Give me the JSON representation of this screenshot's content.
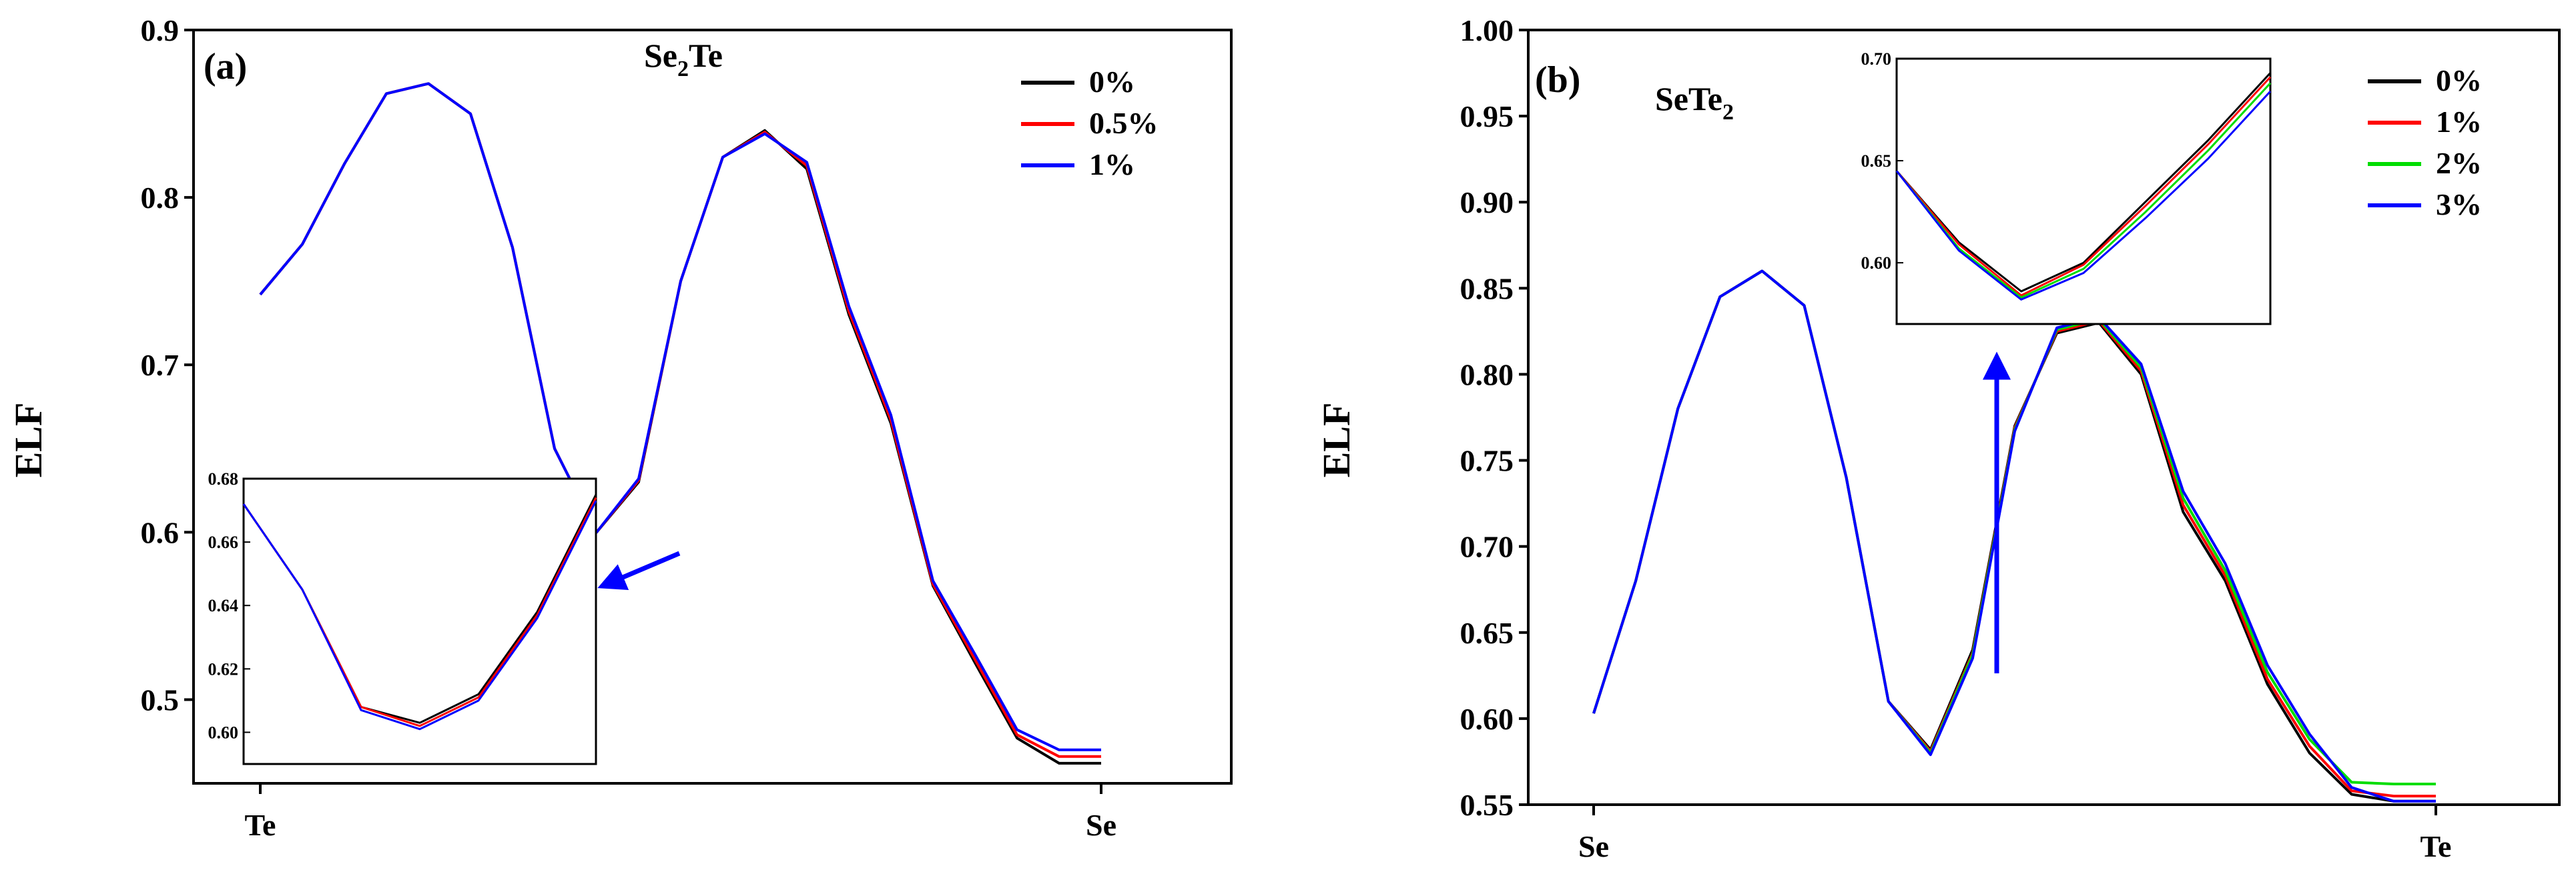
{
  "figure": {
    "type": "line",
    "panels": 2
  },
  "chart_data": [
    {
      "type": "line",
      "panel_label": "(a)",
      "title": {
        "main": "Se",
        "sub": "2",
        "tail": "Te"
      },
      "xlabel": "",
      "ylabel": "ELF",
      "xlim": [
        0,
        20
      ],
      "ylim": [
        0.45,
        0.9
      ],
      "y_ticks": [
        "0.5",
        "0.6",
        "0.7",
        "0.8",
        "0.9"
      ],
      "x_ticks": [
        {
          "x": 0,
          "label": "Te"
        },
        {
          "x": 20,
          "label": "Se"
        }
      ],
      "legend": [
        "0%",
        "0.5%",
        "1%"
      ],
      "series": [
        {
          "name": "0%",
          "color": "#000000",
          "x": [
            0,
            1,
            2,
            3,
            4,
            5,
            6,
            7,
            8,
            9,
            10,
            11,
            12,
            13,
            14,
            15,
            16,
            17,
            18,
            19,
            20
          ],
          "y": [
            0.742,
            0.772,
            0.82,
            0.862,
            0.868,
            0.85,
            0.77,
            0.65,
            0.6,
            0.63,
            0.75,
            0.824,
            0.84,
            0.817,
            0.73,
            0.665,
            0.568,
            0.522,
            0.477,
            0.462,
            0.462
          ]
        },
        {
          "name": "0.5%",
          "color": "#ff0000",
          "x": [
            0,
            1,
            2,
            3,
            4,
            5,
            6,
            7,
            8,
            9,
            10,
            11,
            12,
            13,
            14,
            15,
            16,
            17,
            18,
            19,
            20
          ],
          "y": [
            0.742,
            0.772,
            0.82,
            0.862,
            0.868,
            0.85,
            0.77,
            0.65,
            0.6,
            0.631,
            0.75,
            0.824,
            0.839,
            0.819,
            0.732,
            0.667,
            0.569,
            0.524,
            0.479,
            0.466,
            0.466
          ]
        },
        {
          "name": "1%",
          "color": "#0000ff",
          "x": [
            0,
            1,
            2,
            3,
            4,
            5,
            6,
            7,
            8,
            9,
            10,
            11,
            12,
            13,
            14,
            15,
            16,
            17,
            18,
            19,
            20
          ],
          "y": [
            0.742,
            0.772,
            0.82,
            0.862,
            0.868,
            0.85,
            0.77,
            0.65,
            0.6,
            0.632,
            0.75,
            0.824,
            0.838,
            0.821,
            0.735,
            0.67,
            0.571,
            0.527,
            0.482,
            0.47,
            0.47
          ]
        }
      ],
      "inset": {
        "xlim": [
          0,
          6
        ],
        "ylim": [
          0.59,
          0.68
        ],
        "y_ticks": [
          "0.60",
          "0.62",
          "0.64",
          "0.66",
          "0.68"
        ],
        "series": [
          {
            "name": "0%",
            "color": "#000000",
            "x": [
              0,
              1,
              2,
              3,
              4,
              5,
              6
            ],
            "y": [
              0.672,
              0.645,
              0.608,
              0.603,
              0.612,
              0.638,
              0.675
            ]
          },
          {
            "name": "0.5%",
            "color": "#ff0000",
            "x": [
              0,
              1,
              2,
              3,
              4,
              5,
              6
            ],
            "y": [
              0.672,
              0.645,
              0.608,
              0.602,
              0.611,
              0.637,
              0.674
            ]
          },
          {
            "name": "1%",
            "color": "#0000ff",
            "x": [
              0,
              1,
              2,
              3,
              4,
              5,
              6
            ],
            "y": [
              0.672,
              0.645,
              0.607,
              0.601,
              0.61,
              0.636,
              0.673
            ]
          }
        ]
      }
    },
    {
      "type": "line",
      "panel_label": "(b)",
      "title": {
        "main": "SeTe",
        "sub": "2",
        "tail": ""
      },
      "xlabel": "",
      "ylabel": "ELF",
      "xlim": [
        0,
        20
      ],
      "ylim": [
        0.55,
        1.0
      ],
      "y_ticks": [
        "0.55",
        "0.60",
        "0.65",
        "0.70",
        "0.75",
        "0.80",
        "0.85",
        "0.90",
        "0.95",
        "1.00"
      ],
      "x_ticks": [
        {
          "x": 0,
          "label": "Se"
        },
        {
          "x": 20,
          "label": "Te"
        }
      ],
      "legend": [
        "0%",
        "1%",
        "2%",
        "3%"
      ],
      "series": [
        {
          "name": "0%",
          "color": "#000000",
          "x": [
            0,
            1,
            2,
            3,
            4,
            5,
            6,
            7,
            8,
            9,
            10,
            11,
            12,
            13,
            14,
            15,
            16,
            17,
            18,
            19,
            20
          ],
          "y": [
            0.603,
            0.68,
            0.78,
            0.845,
            0.86,
            0.84,
            0.74,
            0.61,
            0.582,
            0.64,
            0.77,
            0.824,
            0.83,
            0.8,
            0.72,
            0.68,
            0.62,
            0.58,
            0.556,
            0.552,
            0.552
          ]
        },
        {
          "name": "1%",
          "color": "#ff0000",
          "x": [
            0,
            1,
            2,
            3,
            4,
            5,
            6,
            7,
            8,
            9,
            10,
            11,
            12,
            13,
            14,
            15,
            16,
            17,
            18,
            19,
            20
          ],
          "y": [
            0.603,
            0.68,
            0.78,
            0.845,
            0.86,
            0.84,
            0.74,
            0.61,
            0.581,
            0.638,
            0.769,
            0.825,
            0.831,
            0.802,
            0.724,
            0.683,
            0.623,
            0.584,
            0.558,
            0.555,
            0.555
          ]
        },
        {
          "name": "2%",
          "color": "#00dd00",
          "x": [
            0,
            1,
            2,
            3,
            4,
            5,
            6,
            7,
            8,
            9,
            10,
            11,
            12,
            13,
            14,
            15,
            16,
            17,
            18,
            19,
            20
          ],
          "y": [
            0.603,
            0.68,
            0.78,
            0.845,
            0.86,
            0.84,
            0.74,
            0.61,
            0.58,
            0.637,
            0.768,
            0.826,
            0.832,
            0.804,
            0.728,
            0.686,
            0.627,
            0.588,
            0.563,
            0.562,
            0.562
          ]
        },
        {
          "name": "3%",
          "color": "#0000ff",
          "x": [
            0,
            1,
            2,
            3,
            4,
            5,
            6,
            7,
            8,
            9,
            10,
            11,
            12,
            13,
            14,
            15,
            16,
            17,
            18,
            19,
            20
          ],
          "y": [
            0.603,
            0.68,
            0.78,
            0.845,
            0.86,
            0.84,
            0.74,
            0.61,
            0.579,
            0.635,
            0.767,
            0.827,
            0.833,
            0.806,
            0.732,
            0.69,
            0.631,
            0.591,
            0.56,
            0.552,
            0.552
          ]
        }
      ],
      "inset": {
        "xlim": [
          0,
          6
        ],
        "ylim": [
          0.57,
          0.7
        ],
        "y_ticks": [
          "0.60",
          "0.65",
          "0.70"
        ],
        "series": [
          {
            "name": "0%",
            "color": "#000000",
            "x": [
              0,
              1,
              2,
              3,
              4,
              5,
              6
            ],
            "y": [
              0.645,
              0.61,
              0.586,
              0.6,
              0.63,
              0.66,
              0.693
            ]
          },
          {
            "name": "1%",
            "color": "#ff0000",
            "x": [
              0,
              1,
              2,
              3,
              4,
              5,
              6
            ],
            "y": [
              0.645,
              0.609,
              0.584,
              0.599,
              0.628,
              0.658,
              0.691
            ]
          },
          {
            "name": "2%",
            "color": "#00dd00",
            "x": [
              0,
              1,
              2,
              3,
              4,
              5,
              6
            ],
            "y": [
              0.645,
              0.607,
              0.583,
              0.597,
              0.625,
              0.655,
              0.688
            ]
          },
          {
            "name": "3%",
            "color": "#0000ff",
            "x": [
              0,
              1,
              2,
              3,
              4,
              5,
              6
            ],
            "y": [
              0.645,
              0.606,
              0.582,
              0.595,
              0.622,
              0.651,
              0.684
            ]
          }
        ]
      }
    }
  ],
  "colors": {
    "arrow": "#0000ff",
    "axis": "#000000"
  },
  "icons": {
    "arrow_a": "arrow-icon",
    "arrow_b": "arrow-icon"
  }
}
